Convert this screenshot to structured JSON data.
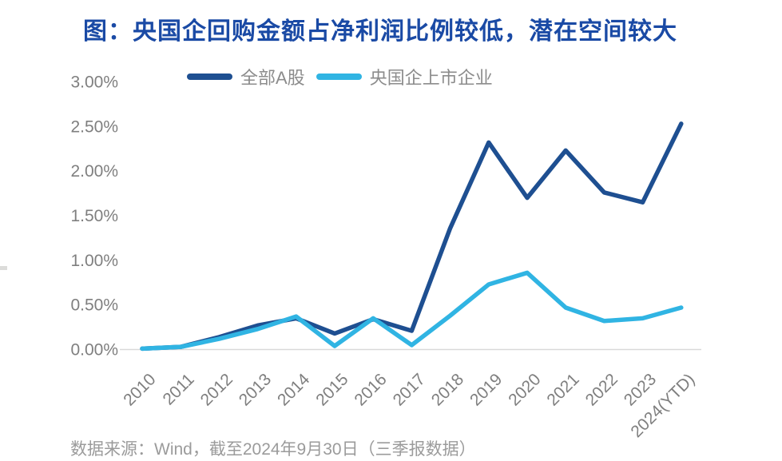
{
  "title": "图：央国企回购金额占净利润比例较低，潜在空间较大",
  "source": "数据来源：Wind，截至2024年9月30日（三季报数据）",
  "colors": {
    "title": "#1a4aa5",
    "axis_label": "#7f7f7f",
    "legend_label": "#8c8c8c",
    "baseline": "#d9d9d9",
    "source_text": "#9b9b9b",
    "series_all_a": "#1e4f91",
    "series_soe": "#30b4e3"
  },
  "chart_data": {
    "type": "line",
    "title": "图：央国企回购金额占净利润比例较低，潜在空间较大",
    "categories": [
      "2010",
      "2011",
      "2012",
      "2013",
      "2014",
      "2015",
      "2016",
      "2017",
      "2018",
      "2019",
      "2020",
      "2021",
      "2022",
      "2023",
      "2024(YTD)"
    ],
    "series": [
      {
        "key": "all-a-shares",
        "name": "全部A股",
        "color": "#1e4f91",
        "values": [
          0.01,
          0.03,
          0.14,
          0.27,
          0.35,
          0.18,
          0.34,
          0.21,
          1.36,
          2.32,
          1.7,
          2.23,
          1.76,
          1.65,
          2.53
        ]
      },
      {
        "key": "central-soe-listed",
        "name": "央国企上市企业",
        "color": "#30b4e3",
        "values": [
          0.01,
          0.03,
          0.12,
          0.23,
          0.37,
          0.04,
          0.35,
          0.05,
          0.38,
          0.73,
          0.86,
          0.47,
          0.32,
          0.35,
          0.47
        ]
      }
    ],
    "unit": "%",
    "ylim": [
      0,
      3
    ],
    "ytick_step": 0.5,
    "ytick_labels": [
      "3.00%",
      "2.50%",
      "2.00%",
      "1.50%",
      "1.00%",
      "0.50%",
      "0.00%"
    ],
    "grid": "zero-baseline-only",
    "legend_position": "top"
  }
}
